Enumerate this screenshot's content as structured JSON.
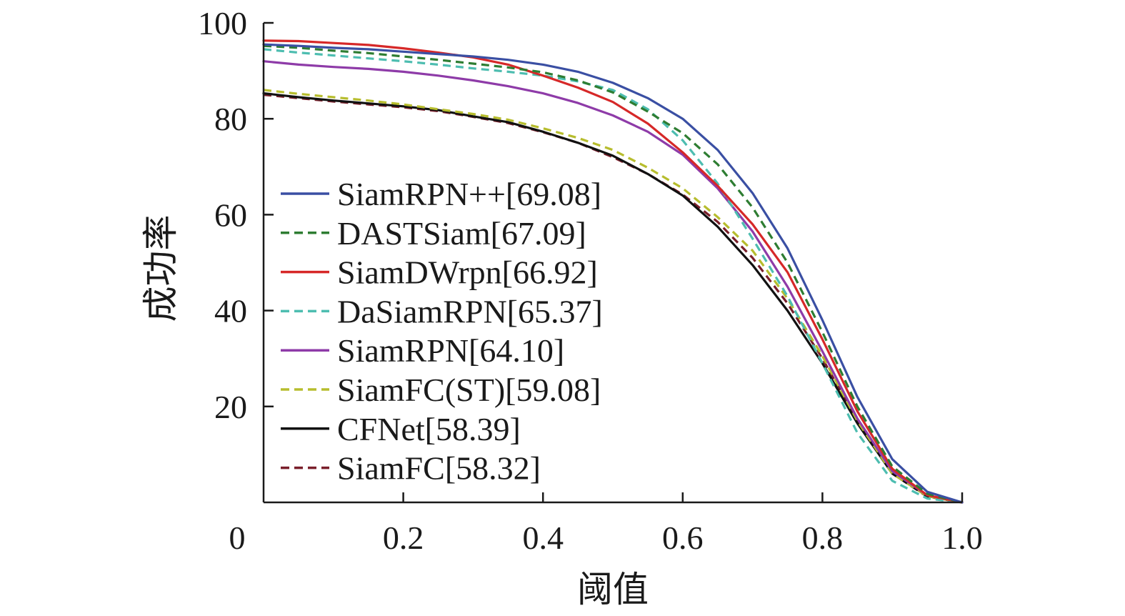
{
  "chart_data": {
    "type": "line",
    "title": "",
    "xlabel": "阈值",
    "ylabel": "成功率",
    "xlim": [
      0,
      1.0
    ],
    "ylim": [
      0,
      100
    ],
    "x_ticks": [
      {
        "value": 0,
        "label": "0"
      },
      {
        "value": 0.2,
        "label": "0.2"
      },
      {
        "value": 0.4,
        "label": "0.4"
      },
      {
        "value": 0.6,
        "label": "0.6"
      },
      {
        "value": 0.8,
        "label": "0.8"
      },
      {
        "value": 1.0,
        "label": "1.0"
      }
    ],
    "y_ticks": [
      {
        "value": 20,
        "label": "20"
      },
      {
        "value": 40,
        "label": "40"
      },
      {
        "value": 60,
        "label": "60"
      },
      {
        "value": 80,
        "label": "80"
      },
      {
        "value": 100,
        "label": "100"
      }
    ],
    "grid": false,
    "legend_position": "left",
    "x": [
      0,
      0.05,
      0.1,
      0.15,
      0.2,
      0.25,
      0.3,
      0.35,
      0.4,
      0.45,
      0.5,
      0.55,
      0.6,
      0.65,
      0.7,
      0.75,
      0.8,
      0.85,
      0.9,
      0.95,
      1.0
    ],
    "series": [
      {
        "name": "SiamRPN++[69.08]",
        "color": "#3a4fa3",
        "dashed": false,
        "values": [
          95.5,
          95.2,
          94.8,
          94.5,
          94.0,
          93.5,
          93.0,
          92.3,
          91.3,
          89.8,
          87.5,
          84.3,
          80.0,
          73.5,
          64.5,
          53.0,
          38.0,
          22.0,
          9.0,
          2.2,
          0.0
        ]
      },
      {
        "name": "DASTSiam[67.09]",
        "color": "#2e7d32",
        "dashed": true,
        "values": [
          95.2,
          94.8,
          94.2,
          93.7,
          93.0,
          92.3,
          91.5,
          90.7,
          89.7,
          88.0,
          85.5,
          81.5,
          77.0,
          70.5,
          61.5,
          50.0,
          35.5,
          20.0,
          7.5,
          1.8,
          0.0
        ]
      },
      {
        "name": "SiamDWrpn[66.92]",
        "color": "#d62828",
        "dashed": false,
        "values": [
          96.3,
          96.2,
          95.8,
          95.4,
          94.7,
          93.8,
          92.8,
          91.3,
          89.0,
          86.5,
          83.5,
          79.0,
          73.0,
          66.0,
          58.0,
          48.0,
          34.0,
          19.0,
          7.0,
          1.5,
          0.0
        ]
      },
      {
        "name": "DaSiamRPN[65.37]",
        "color": "#4dbdb0",
        "dashed": true,
        "values": [
          94.5,
          93.8,
          93.2,
          92.6,
          92.0,
          91.3,
          90.5,
          89.8,
          89.0,
          87.8,
          86.0,
          82.0,
          75.5,
          66.5,
          55.0,
          43.0,
          29.0,
          14.5,
          4.5,
          0.8,
          0.0
        ]
      },
      {
        "name": "SiamRPN[64.10]",
        "color": "#8e3ba8",
        "dashed": false,
        "values": [
          92.0,
          91.3,
          90.8,
          90.4,
          89.8,
          89.0,
          88.0,
          86.8,
          85.3,
          83.3,
          80.7,
          77.3,
          72.5,
          65.5,
          56.5,
          45.0,
          31.5,
          17.5,
          6.5,
          1.5,
          0.0
        ]
      },
      {
        "name": "SiamFC(ST)[59.08]",
        "color": "#b7bd2e",
        "dashed": true,
        "values": [
          86.0,
          85.2,
          84.5,
          83.8,
          83.0,
          82.0,
          81.0,
          79.8,
          78.0,
          76.0,
          73.5,
          69.8,
          65.5,
          59.5,
          52.5,
          42.5,
          30.5,
          17.0,
          6.0,
          1.3,
          0.0
        ]
      },
      {
        "name": "CFNet[58.39]",
        "color": "#111111",
        "dashed": false,
        "values": [
          85.3,
          84.5,
          83.8,
          83.2,
          82.6,
          81.8,
          80.5,
          79.3,
          77.3,
          75.0,
          72.3,
          68.5,
          64.0,
          57.5,
          49.5,
          40.0,
          29.0,
          16.5,
          6.0,
          1.3,
          0.0
        ]
      },
      {
        "name": "SiamFC[58.32]",
        "color": "#7a1f2b",
        "dashed": true,
        "values": [
          85.0,
          84.3,
          83.6,
          83.0,
          82.4,
          81.6,
          80.4,
          79.1,
          77.2,
          75.0,
          72.0,
          68.5,
          64.2,
          58.5,
          51.0,
          41.5,
          30.0,
          17.0,
          6.0,
          1.2,
          0.0
        ]
      }
    ]
  }
}
